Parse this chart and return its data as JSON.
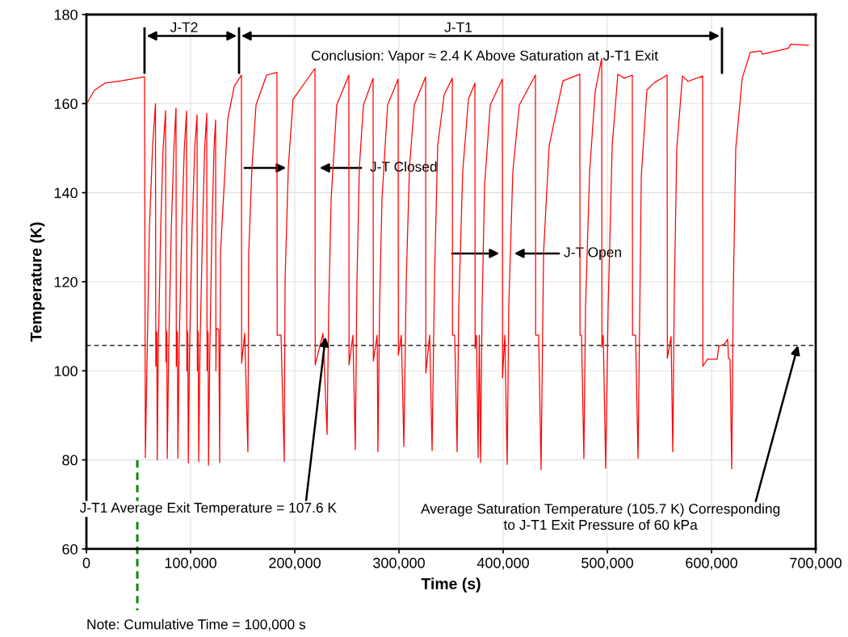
{
  "chart_data": {
    "type": "line",
    "xlabel": "Time (s)",
    "ylabel": "Temperature (K)",
    "xlim": [
      0,
      700000
    ],
    "ylim": [
      60,
      180
    ],
    "xticks": [
      0,
      {
        "value": 100000,
        "label": "100,000"
      },
      {
        "value": 200000,
        "label": "200,000"
      },
      {
        "value": 300000,
        "label": "300,000"
      },
      {
        "value": 400000,
        "label": "400,000"
      },
      {
        "value": 500000,
        "label": "500,000"
      },
      {
        "value": 600000,
        "label": "600,000"
      },
      {
        "value": 700000,
        "label": "700,000"
      }
    ],
    "yticks": [
      60,
      80,
      100,
      120,
      140,
      160,
      180
    ],
    "grid": true,
    "legend": false,
    "marker": "none",
    "line_style": "solid",
    "ref_lines": [
      {
        "axis": "y",
        "value": 105.7,
        "color": "#000000",
        "line_style": "dashed"
      }
    ],
    "annotations": [
      "J-T2",
      "J-T1",
      "Conclusion: Vapor ≈ 2.4 K Above Saturation at J-T1 Exit",
      "J-T Closed",
      "J-T Open",
      {
        "text": "J-T1 Average Exit Temperature = 107.6 K",
        "x": 229500,
        "y": 107.6
      },
      {
        "text": "Average Saturation Temperature (105.7 K) Corresponding\nto J-T1 Exit Pressure of 60 kPa",
        "x": 683000,
        "y": 105.7
      },
      "Note: Cumulative Time = 100,000 s"
    ],
    "series": [
      {
        "color": "#ff0000",
        "x": [
          775,
          7752,
          17829,
          33333,
          55814,
          56589,
          58140,
          60465,
          63566,
          66279,
          66600,
          67000,
          67600,
          68000,
          69000,
          71300,
          73600,
          76000,
          76300,
          76700,
          77200,
          77600,
          79000,
          81500,
          84000,
          86000,
          86300,
          86700,
          87300,
          87800,
          89000,
          91500,
          94000,
          96100,
          96400,
          96800,
          97300,
          97800,
          99000,
          101500,
          104000,
          106200,
          106500,
          106900,
          107300,
          107800,
          109000,
          111500,
          113500,
          115500,
          115800,
          116200,
          116800,
          117200,
          118500,
          120500,
          122500,
          124000,
          124300,
          124700,
          127100,
          127900,
          128700,
          135700,
          141900,
          148800,
          149000,
          151900,
          155000,
          155800,
          158900,
          162800,
          172900,
          182900,
          183100,
          186800,
          189900,
          190700,
          193800,
          198400,
          219400,
          219600,
          227100,
          231000,
          232600,
          234900,
          240300,
          251900,
          252100,
          255800,
          258100,
          259700,
          262000,
          265900,
          275200,
          275400,
          279100,
          279800,
          281400,
          283700,
          289100,
          299200,
          299400,
          302300,
          304700,
          307000,
          310100,
          314700,
          325600,
          325800,
          329500,
          331800,
          334100,
          337200,
          343400,
          351200,
          351400,
          353500,
          355800,
          357400,
          361200,
          366700,
          372900,
          373100,
          374400,
          376000,
          377100,
          378300,
          379800,
          382200,
          387600,
          399200,
          399400,
          401600,
          403900,
          405400,
          409300,
          415500,
          431000,
          431200,
          434100,
          436400,
          438800,
          444200,
          457400,
          473600,
          473800,
          475200,
          477500,
          479100,
          483000,
          488400,
          494600,
          494800,
          496100,
          498400,
          500800,
          504700,
          510100,
          516300,
          524000,
          524200,
          527100,
          529500,
          532600,
          538000,
          545700,
          557400,
          557600,
          561200,
          562800,
          564300,
          566700,
          572100,
          577500,
          591500,
          591700,
          596100,
          605400,
          607000,
          612400,
          615500,
          616300,
          617800,
          619400,
          620900,
          623300,
          629500,
          637200,
          647300,
          648800,
          673600,
          676000,
          693000
        ],
        "values": [
          160.2,
          163.0,
          164.6,
          165.1,
          166.0,
          80.5,
          102,
          132,
          150.6,
          160.0,
          101,
          108.9,
          108.5,
          80.0,
          105,
          132,
          150,
          158.4,
          102,
          109,
          108.5,
          80.3,
          105,
          132,
          150,
          159,
          101,
          109,
          108.5,
          80.4,
          105,
          132,
          150,
          158.3,
          100,
          109,
          108.5,
          79.3,
          105,
          132,
          150,
          157.5,
          100,
          109,
          108.5,
          79.6,
          105,
          132,
          150,
          157.8,
          100,
          109,
          108.5,
          78.8,
          105,
          132,
          150,
          156.3,
          100,
          109.5,
          109.3,
          79.4,
          126.5,
          156.6,
          163.9,
          166.4,
          101.7,
          108.4,
          81.8,
          126.5,
          145.7,
          159.7,
          166.4,
          167,
          108,
          108,
          79.6,
          120.4,
          145.7,
          161,
          167.9,
          101.3,
          108.4,
          85.7,
          114.4,
          138.5,
          159.7,
          166.4,
          101.3,
          108,
          82.3,
          120.4,
          145.7,
          159.7,
          165.7,
          102.2,
          108,
          81.8,
          114.4,
          138.5,
          159.7,
          165.5,
          103.5,
          108,
          83,
          120.4,
          145.7,
          159.7,
          166,
          99.5,
          108,
          82.1,
          120.4,
          150.6,
          162,
          165.7,
          108,
          108,
          81.8,
          114.4,
          144.7,
          161,
          164.6,
          105,
          108,
          80.5,
          108,
          79.4,
          114.4,
          141.6,
          159.7,
          165.5,
          98.4,
          108,
          79,
          114.4,
          144.7,
          159.7,
          166.4,
          108,
          108,
          77.8,
          126.5,
          150.6,
          165.1,
          166.6,
          108,
          108,
          80.3,
          114.4,
          144.7,
          162.8,
          170.2,
          105.3,
          108,
          78.1,
          114.4,
          150.6,
          166.6,
          165.7,
          166.4,
          108,
          108,
          80.3,
          143.6,
          163.1,
          164.8,
          166.4,
          102.8,
          107.7,
          81.8,
          117.8,
          150,
          166.2,
          165,
          166.2,
          101,
          102.6,
          102.6,
          105.5,
          106,
          107.1,
          102.8,
          102.6,
          78,
          117.8,
          150,
          165.7,
          171.5,
          171.8,
          171.1,
          172.4,
          173.3,
          173.1
        ]
      }
    ]
  }
}
